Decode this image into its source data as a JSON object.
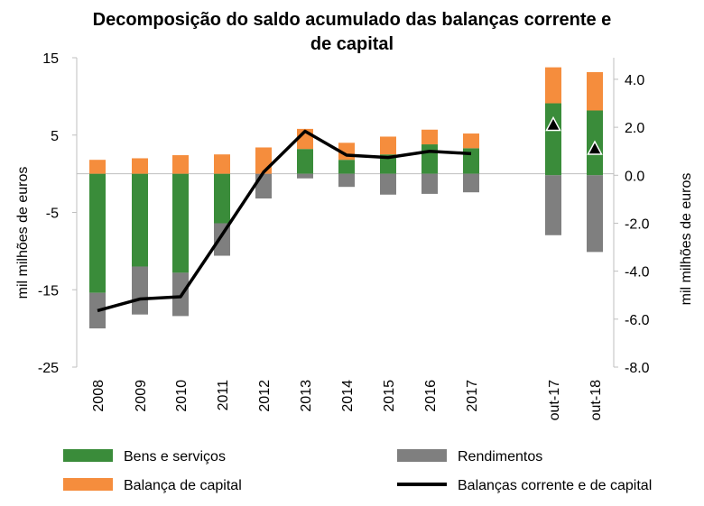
{
  "chart_data": {
    "type": "bar",
    "title_lines": [
      "Decomposição do saldo acumulado das balanças corrente e",
      "de capital"
    ],
    "categories": [
      "2008",
      "2009",
      "2010",
      "2011",
      "2012",
      "2013",
      "2014",
      "2015",
      "2016",
      "2017",
      "out-17",
      "out-18"
    ],
    "ylabel_left": "mil milhões de euros",
    "ylabel_right": "mil milhões de euros",
    "ylim_left": [
      -25,
      15
    ],
    "yticks_left": [
      "15",
      "5",
      "-5",
      "-15",
      "-25"
    ],
    "ylim_right": [
      -8,
      4.9
    ],
    "yticks_right": [
      "4.0",
      "2.0",
      "0.0",
      "-2.0",
      "-4.0",
      "-6.0",
      "-8.0"
    ],
    "series": [
      {
        "name": "Bens e serviços",
        "color": "#3a8c3a",
        "axis": "mixed",
        "values": [
          -15.4,
          -12.0,
          -12.8,
          -6.4,
          0,
          3.2,
          1.8,
          2.5,
          3.8,
          3.3,
          3.0,
          2.7
        ]
      },
      {
        "name": "Rendimentos",
        "color": "#7f7f7f",
        "axis": "mixed",
        "values": [
          -4.6,
          -6.2,
          -5.6,
          -4.2,
          -3.2,
          -0.6,
          -1.7,
          -2.7,
          -2.6,
          -2.4,
          -2.5,
          -3.2
        ]
      },
      {
        "name": "Balança de capital",
        "color": "#f58d3d",
        "axis": "mixed",
        "values": [
          1.8,
          2.0,
          2.4,
          2.5,
          3.4,
          2.6,
          2.2,
          2.3,
          1.9,
          1.9,
          1.5,
          1.6
        ]
      },
      {
        "name": "Balanças corrente e de capital",
        "color": "#000000",
        "type": "line",
        "values": [
          -17.7,
          -16.2,
          -15.9,
          -7.9,
          0.2,
          5.5,
          2.4,
          2.1,
          2.9,
          2.6,
          2.1,
          1.1
        ]
      }
    ],
    "legend": {
      "placement": "bottom",
      "items": [
        "Bens e serviços",
        "Rendimentos",
        "Balança de capital",
        "Balanças corrente e de capital"
      ]
    }
  }
}
